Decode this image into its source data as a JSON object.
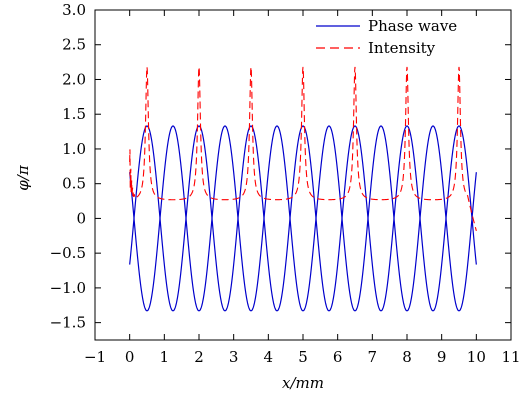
{
  "chart_data": {
    "type": "line",
    "xlabel": "x/mm",
    "ylabel": "φ/π",
    "xlim": [
      -1,
      11
    ],
    "ylim": [
      -1.75,
      3.0
    ],
    "xticks": [
      -1,
      0,
      1,
      2,
      3,
      4,
      5,
      6,
      7,
      8,
      9,
      10,
      11
    ],
    "xtick_labels": [
      "−1",
      "0",
      "1",
      "2",
      "3",
      "4",
      "5",
      "6",
      "7",
      "8",
      "9",
      "10",
      "11"
    ],
    "yticks": [
      -1.5,
      -1.0,
      -0.5,
      0,
      0.5,
      1.0,
      1.5,
      2.0,
      2.5,
      3.0
    ],
    "ytick_labels": [
      "−1.5",
      "−1.0",
      "−0.5",
      "0",
      "0.5",
      "1.0",
      "1.5",
      "2.0",
      "2.5",
      "3.0"
    ],
    "grid": false,
    "legend_position": "top-right",
    "series": [
      {
        "name": "Phase wave",
        "style": "solid",
        "color": "#0000cc",
        "description": "two anti-phase sinusoids, amplitude 1.33, period 1.5 mm, over x = 0..10",
        "amplitude": 1.33,
        "period": 1.5,
        "peaks_x": [
          0.5,
          2.0,
          3.5,
          5.0,
          6.5,
          8.0,
          9.5
        ],
        "troughs_x": [
          1.25,
          2.75,
          4.25,
          5.75,
          7.25,
          8.75
        ]
      },
      {
        "name": "Intensity",
        "style": "dashed",
        "color": "#ff0000",
        "description": "sharp peaks at the phase-wave maxima over a baseline near 0.25",
        "peak_height": 2.18,
        "baseline": 0.25,
        "peaks_x": [
          0.5,
          2.0,
          3.5,
          5.0,
          6.5,
          8.0,
          9.5
        ]
      }
    ]
  }
}
